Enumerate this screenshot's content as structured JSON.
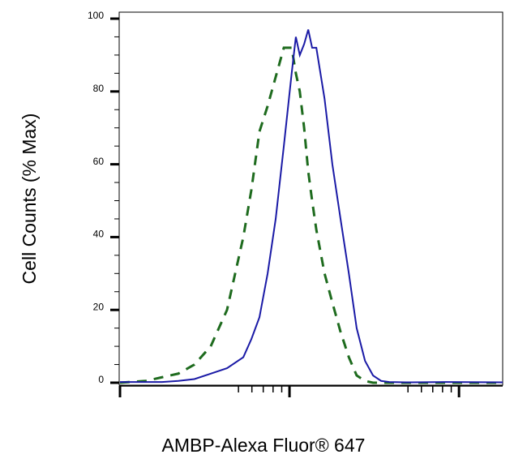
{
  "chart_data": {
    "type": "line",
    "y_label": "Cell Counts (% Max)",
    "x_label": "AMBP-Alexa Fluor® 647",
    "x_log": true,
    "x": [
      1,
      1.42,
      1.77,
      2.21,
      2.75,
      3.43,
      4.28,
      5.34,
      5.96,
      6.65,
      7.43,
      8.29,
      9.26,
      10.3,
      10.9,
      11.5,
      12.2,
      12.9,
      13.6,
      14.4,
      16.1,
      17.9,
      20.0,
      22.4,
      24.9,
      27.9,
      31.1,
      34.7,
      38.8,
      48.3,
      83.8,
      181
    ],
    "series": [
      {
        "color": "#1e6b1e",
        "dashed": true,
        "values": [
          0,
          0.5,
          1.5,
          2.5,
          5,
          10,
          20,
          40,
          53,
          69,
          76,
          84,
          92,
          92,
          85,
          80,
          70,
          58,
          50,
          42,
          30,
          22,
          14,
          7,
          2,
          0.5,
          0,
          0,
          0,
          0,
          0,
          0
        ]
      },
      {
        "color": "#1a1aa6",
        "dashed": false,
        "values": [
          0.2,
          0.2,
          0.2,
          0.5,
          1,
          2.5,
          4,
          7,
          12,
          18,
          30,
          45,
          65,
          85,
          95,
          90,
          93,
          97,
          92,
          92,
          78,
          60,
          45,
          30,
          15,
          6,
          2,
          0.5,
          0.2,
          0.1,
          0.2,
          0.1
        ]
      }
    ],
    "xlim": [
      1,
      181
    ],
    "xticks": [
      1,
      10,
      100
    ],
    "x_minor_ticks": [
      5,
      6,
      7,
      8,
      9,
      50,
      60,
      70,
      80,
      90
    ],
    "ylim": [
      0,
      100
    ],
    "yticks": [
      0,
      20,
      40,
      60,
      80,
      100
    ],
    "y_minor_ticks": [
      5,
      10,
      15,
      25,
      30,
      35,
      45,
      50,
      55,
      65,
      70,
      75,
      85,
      90,
      95
    ]
  }
}
